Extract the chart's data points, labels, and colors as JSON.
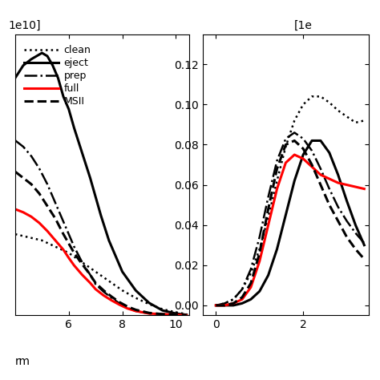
{
  "left_panel": {
    "xlim": [
      4.0,
      10.5
    ],
    "ylim": [
      0,
      0.45
    ],
    "xticks": [
      6,
      8,
      10
    ],
    "top_label": "1e10]",
    "clean": {
      "x": [
        4.0,
        4.5,
        5.0,
        5.5,
        6.0,
        6.5,
        7.0,
        7.5,
        8.0,
        8.5,
        9.0,
        9.5,
        10.0,
        10.4
      ],
      "y": [
        0.13,
        0.125,
        0.12,
        0.11,
        0.1,
        0.085,
        0.07,
        0.055,
        0.04,
        0.028,
        0.018,
        0.01,
        0.005,
        0.002
      ]
    },
    "eject": {
      "x": [
        4.0,
        4.3,
        4.6,
        4.8,
        5.0,
        5.2,
        5.4,
        5.6,
        5.8,
        6.0,
        6.2,
        6.5,
        6.8,
        7.0,
        7.2,
        7.5,
        7.8,
        8.0,
        8.5,
        9.0,
        9.5,
        10.0,
        10.4
      ],
      "y": [
        0.38,
        0.4,
        0.41,
        0.415,
        0.42,
        0.415,
        0.4,
        0.38,
        0.35,
        0.33,
        0.3,
        0.26,
        0.22,
        0.19,
        0.16,
        0.12,
        0.09,
        0.07,
        0.04,
        0.02,
        0.008,
        0.003,
        0.001
      ]
    },
    "prep": {
      "x": [
        4.0,
        4.3,
        4.6,
        4.9,
        5.2,
        5.5,
        5.8,
        6.0,
        6.2,
        6.5,
        6.8,
        7.0,
        7.3,
        7.6,
        7.9,
        8.2,
        8.5,
        9.0,
        9.5,
        10.0,
        10.4
      ],
      "y": [
        0.28,
        0.27,
        0.255,
        0.235,
        0.21,
        0.18,
        0.15,
        0.13,
        0.11,
        0.085,
        0.065,
        0.05,
        0.038,
        0.028,
        0.019,
        0.012,
        0.007,
        0.003,
        0.002,
        0.001,
        0.001
      ]
    },
    "full": {
      "x": [
        4.0,
        4.3,
        4.6,
        4.9,
        5.2,
        5.5,
        5.8,
        6.0,
        6.2,
        6.5,
        6.8,
        7.0,
        7.3,
        7.6,
        7.9,
        8.2,
        8.5,
        9.0,
        9.5,
        10.0,
        10.4
      ],
      "y": [
        0.17,
        0.165,
        0.158,
        0.148,
        0.135,
        0.12,
        0.105,
        0.092,
        0.08,
        0.065,
        0.052,
        0.042,
        0.032,
        0.024,
        0.017,
        0.011,
        0.007,
        0.003,
        0.002,
        0.001,
        0.0
      ]
    },
    "msii": {
      "x": [
        4.0,
        4.3,
        4.6,
        4.9,
        5.2,
        5.5,
        5.8,
        6.0,
        6.2,
        6.5,
        6.8,
        7.0,
        7.3,
        7.6,
        7.9,
        8.2,
        8.5,
        9.0,
        9.5,
        10.0,
        10.4
      ],
      "y": [
        0.23,
        0.22,
        0.21,
        0.195,
        0.175,
        0.155,
        0.13,
        0.115,
        0.1,
        0.082,
        0.065,
        0.052,
        0.04,
        0.03,
        0.021,
        0.014,
        0.009,
        0.004,
        0.002,
        0.001,
        0.0
      ]
    }
  },
  "right_panel": {
    "xlim": [
      -0.3,
      3.5
    ],
    "ylim": [
      -0.005,
      0.135
    ],
    "xticks": [
      0,
      2
    ],
    "yticks": [
      0.0,
      0.02,
      0.04,
      0.06,
      0.08,
      0.1,
      0.12
    ],
    "top_label": "[1e",
    "clean": {
      "x": [
        0.0,
        0.2,
        0.4,
        0.6,
        0.8,
        1.0,
        1.2,
        1.4,
        1.6,
        1.8,
        2.0,
        2.2,
        2.4,
        2.6,
        2.8,
        3.0,
        3.2,
        3.4
      ],
      "y": [
        0.0,
        0.001,
        0.003,
        0.008,
        0.016,
        0.028,
        0.044,
        0.062,
        0.079,
        0.092,
        0.1,
        0.104,
        0.104,
        0.101,
        0.097,
        0.094,
        0.091,
        0.092
      ]
    },
    "eject": {
      "x": [
        0.0,
        0.2,
        0.4,
        0.6,
        0.8,
        1.0,
        1.2,
        1.4,
        1.6,
        1.8,
        2.0,
        2.2,
        2.4,
        2.6,
        2.8,
        3.0,
        3.2,
        3.4
      ],
      "y": [
        0.0,
        0.0,
        0.0,
        0.001,
        0.003,
        0.007,
        0.015,
        0.028,
        0.045,
        0.062,
        0.075,
        0.082,
        0.082,
        0.076,
        0.065,
        0.052,
        0.04,
        0.03
      ]
    },
    "prep": {
      "x": [
        0.0,
        0.2,
        0.4,
        0.6,
        0.8,
        1.0,
        1.2,
        1.4,
        1.6,
        1.8,
        2.0,
        2.2,
        2.4,
        2.6,
        2.8,
        3.0,
        3.2,
        3.4
      ],
      "y": [
        0.0,
        0.001,
        0.003,
        0.008,
        0.018,
        0.034,
        0.054,
        0.072,
        0.083,
        0.086,
        0.083,
        0.077,
        0.068,
        0.058,
        0.049,
        0.042,
        0.036,
        0.031
      ]
    },
    "full": {
      "x": [
        0.0,
        0.2,
        0.4,
        0.6,
        0.8,
        1.0,
        1.2,
        1.4,
        1.6,
        1.8,
        2.0,
        2.2,
        2.4,
        2.6,
        2.8,
        3.0,
        3.2,
        3.4
      ],
      "y": [
        0.0,
        0.0,
        0.001,
        0.003,
        0.009,
        0.022,
        0.04,
        0.058,
        0.071,
        0.075,
        0.073,
        0.069,
        0.065,
        0.063,
        0.061,
        0.06,
        0.059,
        0.058
      ]
    },
    "msii": {
      "x": [
        0.0,
        0.2,
        0.4,
        0.6,
        0.8,
        1.0,
        1.2,
        1.4,
        1.6,
        1.8,
        2.0,
        2.2,
        2.4,
        2.6,
        2.8,
        3.0,
        3.2,
        3.4
      ],
      "y": [
        0.0,
        0.0,
        0.001,
        0.004,
        0.011,
        0.026,
        0.048,
        0.068,
        0.08,
        0.082,
        0.078,
        0.07,
        0.06,
        0.05,
        0.042,
        0.034,
        0.028,
        0.023
      ]
    }
  },
  "legend": {
    "clean": {
      "label": "clean",
      "linestyle": "dotted",
      "color": "black",
      "linewidth": 1.8
    },
    "eject": {
      "label": "eject",
      "linestyle": "solid",
      "color": "black",
      "linewidth": 2.2
    },
    "prep": {
      "label": "prep",
      "linestyle": "dashdot",
      "color": "black",
      "linewidth": 1.8
    },
    "full": {
      "label": "full",
      "linestyle": "solid",
      "color": "red",
      "linewidth": 2.2
    },
    "msii": {
      "label": "MSII",
      "linestyle": "dashed",
      "color": "black",
      "linewidth": 2.2
    }
  },
  "bg_color": "#ffffff",
  "font_size": 10
}
